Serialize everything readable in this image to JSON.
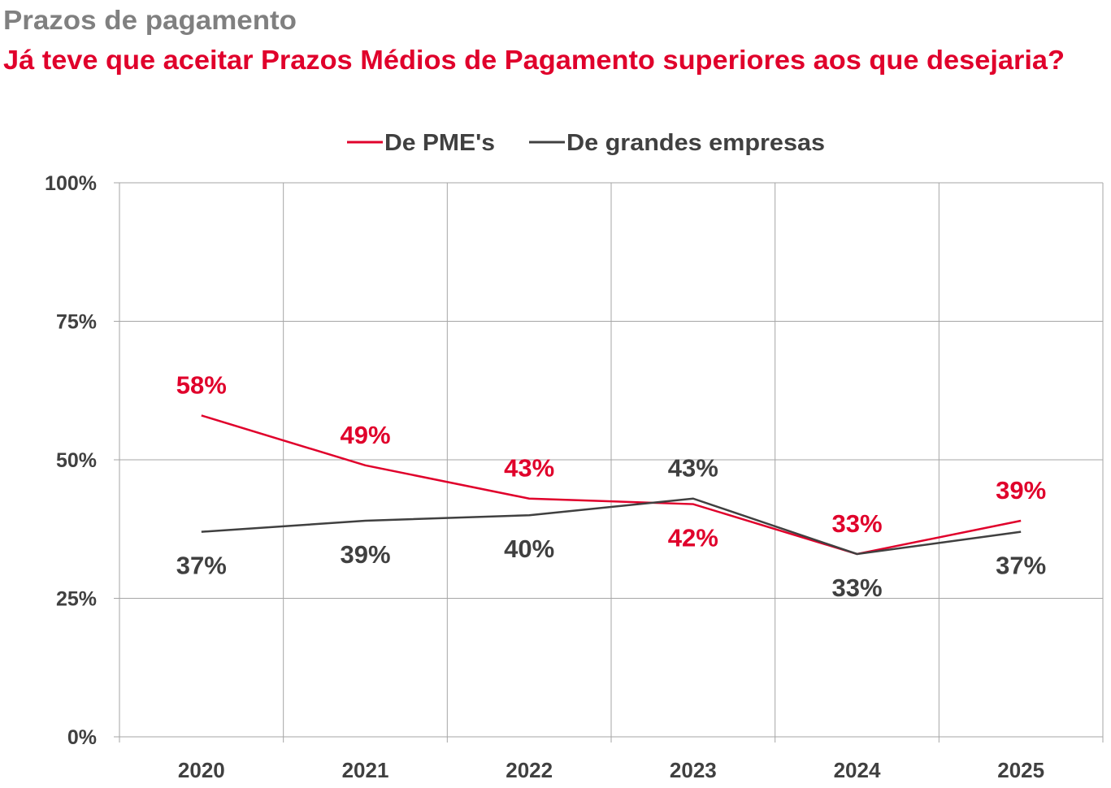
{
  "header": {
    "title": "Prazos de pagamento",
    "subtitle": "Já teve que aceitar Prazos Médios de Pagamento superiores aos que desejaria?"
  },
  "colors": {
    "title": "#808080",
    "subtitle": "#E0002B",
    "pme": "#E0002B",
    "grandes": "#404040",
    "grid": "#A6A6A6",
    "text": "#404040"
  },
  "chart_data": {
    "type": "line",
    "title": "Já teve que aceitar Prazos Médios de Pagamento superiores aos que desejaria?",
    "xlabel": "",
    "ylabel": "",
    "categories": [
      "2020",
      "2021",
      "2022",
      "2023",
      "2024",
      "2025"
    ],
    "ylim": [
      0,
      100
    ],
    "yticks": [
      0,
      25,
      50,
      75,
      100
    ],
    "ytick_labels": [
      "0%",
      "25%",
      "50%",
      "75%",
      "100%"
    ],
    "grid": true,
    "legend_position": "top-center",
    "series": [
      {
        "name": "De PME's",
        "color": "#E0002B",
        "values": [
          58,
          49,
          43,
          42,
          33,
          39
        ],
        "labels": [
          "58%",
          "49%",
          "43%",
          "42%",
          "33%",
          "39%"
        ],
        "label_side": [
          "above",
          "above",
          "above",
          "below",
          "above",
          "above"
        ]
      },
      {
        "name": "De grandes empresas",
        "color": "#404040",
        "values": [
          37,
          39,
          40,
          43,
          33,
          37
        ],
        "labels": [
          "37%",
          "39%",
          "40%",
          "43%",
          "33%",
          "37%"
        ],
        "label_side": [
          "below",
          "below",
          "below",
          "above",
          "below",
          "below"
        ]
      }
    ]
  }
}
